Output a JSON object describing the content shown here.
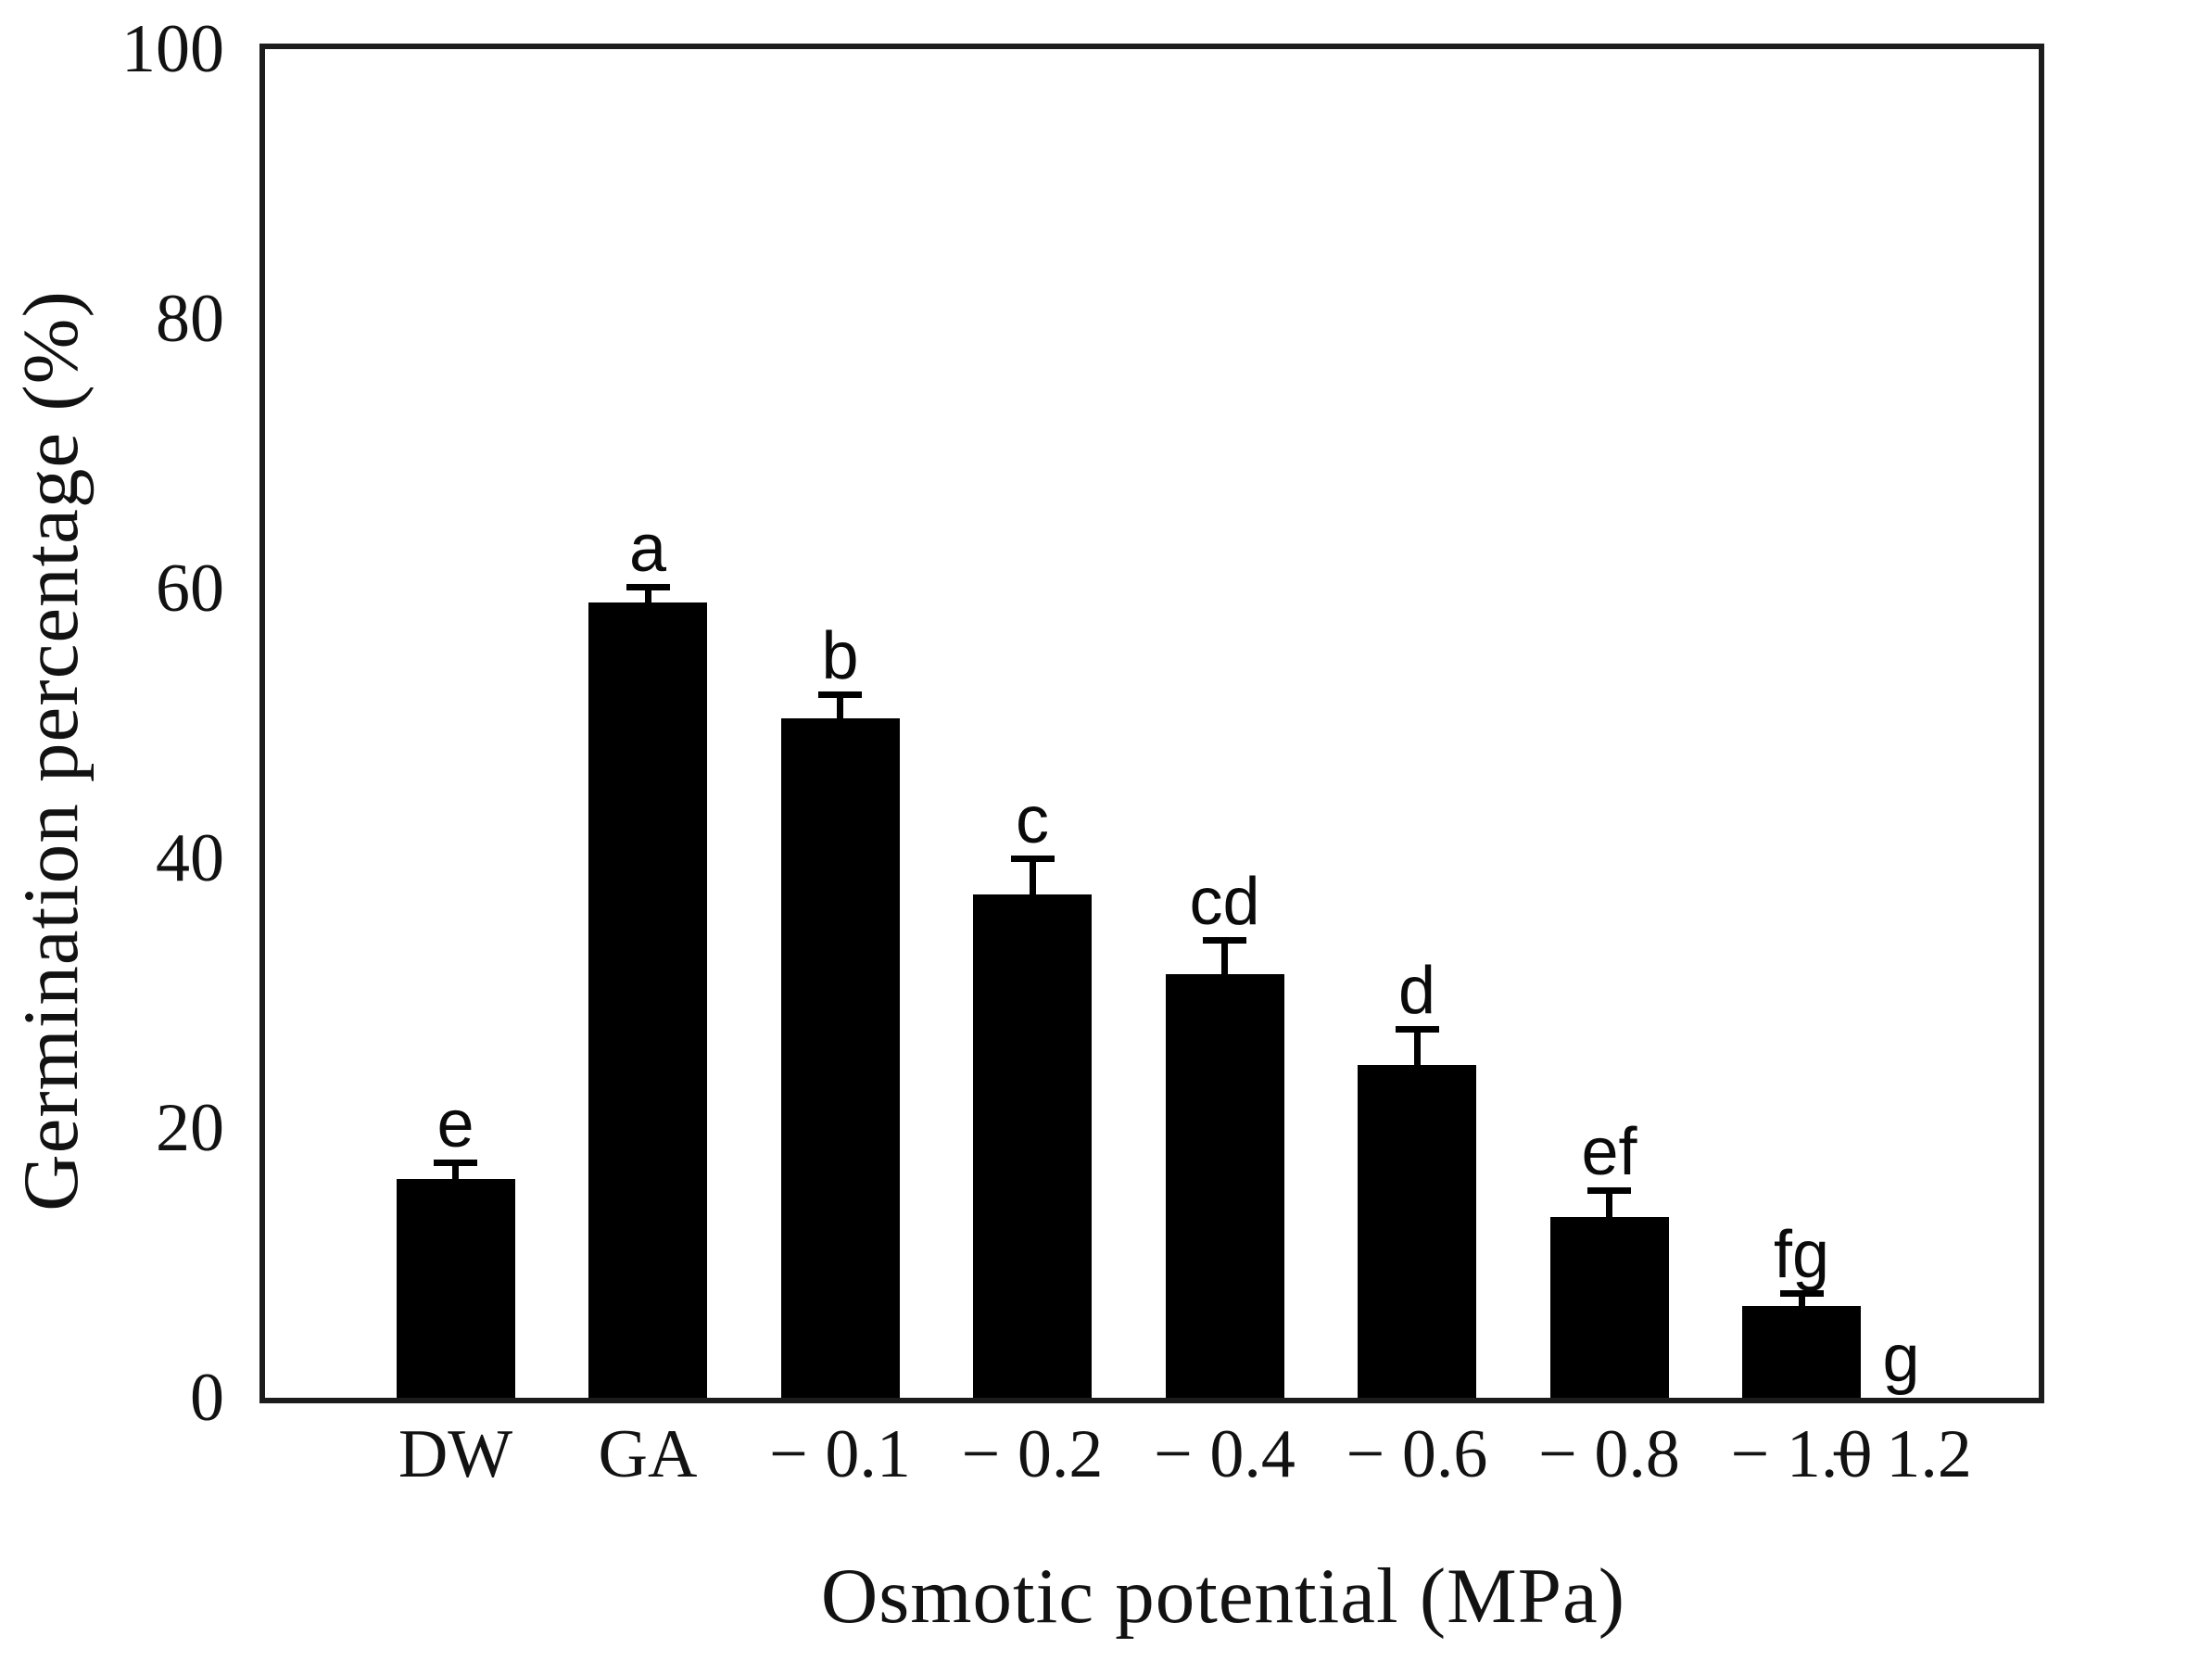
{
  "chart_data": {
    "type": "bar",
    "title": "",
    "xlabel": "Osmotic potential (MPa)",
    "ylabel": "Germination percentage (%)",
    "ylim": [
      0,
      100
    ],
    "yticks": [
      0,
      20,
      40,
      60,
      80,
      100
    ],
    "grid": false,
    "legend": "none",
    "bar_color": "#000000",
    "frame_color": "#1c1c1c",
    "error_bars": "upper only, cap style",
    "categories": [
      "DW",
      "GA",
      "− 0.1",
      "− 0.2",
      "− 0.4",
      "− 0.6",
      "− 0.8",
      "− 1.0",
      "− 1.2"
    ],
    "values": [
      16.2,
      59.0,
      50.4,
      37.3,
      31.4,
      24.7,
      13.4,
      6.8,
      0
    ],
    "errors": [
      1.2,
      1.1,
      1.7,
      2.6,
      2.5,
      2.6,
      1.9,
      0.9,
      0
    ],
    "sig_letters": [
      "e",
      "a",
      "b",
      "c",
      "cd",
      "d",
      "ef",
      "fg",
      "g"
    ]
  }
}
